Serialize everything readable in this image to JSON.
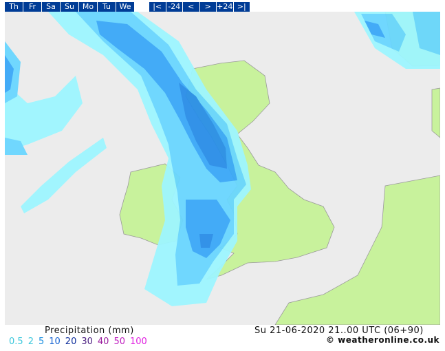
{
  "nav": {
    "days": [
      "Th",
      "Fr",
      "Sa",
      "Su",
      "Mo",
      "Tu",
      "We"
    ],
    "steps": [
      "|<",
      "-24",
      "<",
      ">",
      "+24",
      ">|"
    ]
  },
  "legend": {
    "title": "Precipitation (mm)",
    "levels": [
      "0.5",
      "2",
      "5",
      "10",
      "20",
      "30",
      "40",
      "50",
      "100"
    ]
  },
  "footer": {
    "date": "Su 21-06-2020 21..00 UTC (06+90)",
    "credit": "© weatheronline.co.uk"
  }
}
